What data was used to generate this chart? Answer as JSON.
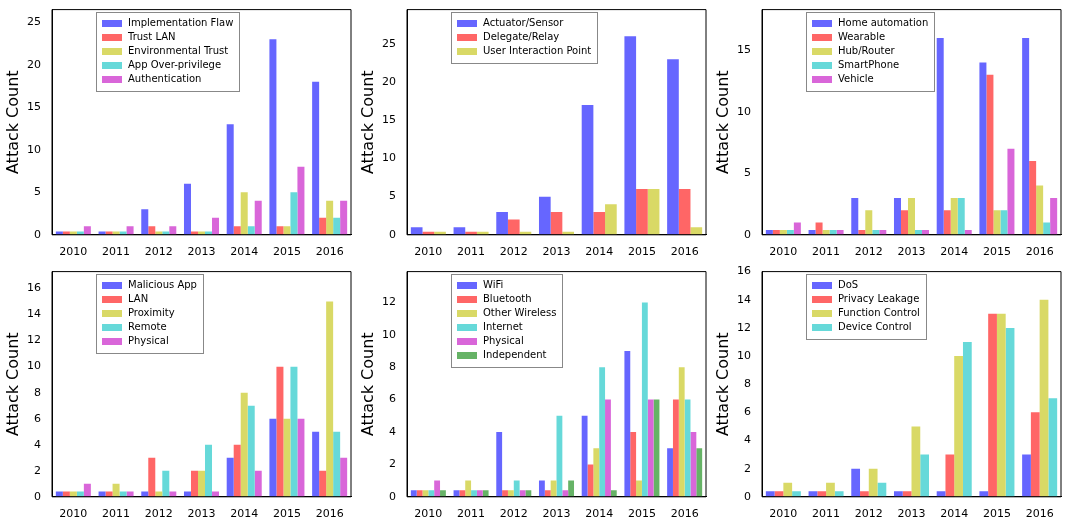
{
  "chart_data": [
    {
      "type": "bar",
      "ylabel": "Attack Count",
      "categories": [
        "2010",
        "2011",
        "2012",
        "2013",
        "2014",
        "2015",
        "2016"
      ],
      "ylim": [
        0,
        26.5
      ],
      "yticks": [
        0,
        5,
        10,
        15,
        20,
        25
      ],
      "grid": false,
      "legend": "top left",
      "series": [
        {
          "name": "Implementation Flaw",
          "color": "#6666ff",
          "values": [
            0.4,
            0.4,
            3,
            6,
            13,
            23,
            18
          ]
        },
        {
          "name": "Trust LAN",
          "color": "#ff6666",
          "values": [
            0.4,
            0.4,
            1,
            0.4,
            1,
            1,
            2
          ]
        },
        {
          "name": "Environmental Trust",
          "color": "#d9d966",
          "values": [
            0.4,
            0.4,
            0.4,
            0.4,
            5,
            1,
            4
          ]
        },
        {
          "name": "App Over-privilege",
          "color": "#66d9d9",
          "values": [
            0.4,
            0.4,
            0.4,
            0.4,
            1,
            5,
            2
          ]
        },
        {
          "name": "Authentication",
          "color": "#d966d9",
          "values": [
            1,
            1,
            1,
            2,
            4,
            8,
            4
          ]
        }
      ]
    },
    {
      "type": "bar",
      "ylabel": "Attack Count",
      "categories": [
        "2010",
        "2011",
        "2012",
        "2013",
        "2014",
        "2015",
        "2016"
      ],
      "ylim": [
        0,
        29.5
      ],
      "yticks": [
        0,
        5,
        10,
        15,
        20,
        25
      ],
      "grid": false,
      "legend": "top left",
      "series": [
        {
          "name": "Actuator/Sensor",
          "color": "#6666ff",
          "values": [
            1,
            1,
            3,
            5,
            17,
            26,
            23
          ]
        },
        {
          "name": "Delegate/Relay",
          "color": "#ff6666",
          "values": [
            0.4,
            0.4,
            2,
            3,
            3,
            6,
            6
          ]
        },
        {
          "name": "User Interaction Point",
          "color": "#d9d966",
          "values": [
            0.4,
            0.4,
            0.4,
            0.4,
            4,
            6,
            1
          ]
        }
      ]
    },
    {
      "type": "bar",
      "ylabel": "Attack Count",
      "categories": [
        "2010",
        "2011",
        "2012",
        "2013",
        "2014",
        "2015",
        "2016"
      ],
      "ylim": [
        0,
        18.3
      ],
      "yticks": [
        0,
        5,
        10,
        15
      ],
      "grid": false,
      "legend": "top left",
      "series": [
        {
          "name": "Home automation",
          "color": "#6666ff",
          "values": [
            0.4,
            0.4,
            3,
            3,
            16,
            14,
            16
          ]
        },
        {
          "name": "Wearable",
          "color": "#ff6666",
          "values": [
            0.4,
            1,
            0.4,
            2,
            2,
            13,
            6
          ]
        },
        {
          "name": "Hub/Router",
          "color": "#d9d966",
          "values": [
            0.4,
            0.4,
            2,
            3,
            3,
            2,
            4
          ]
        },
        {
          "name": "SmartPhone",
          "color": "#66d9d9",
          "values": [
            0.4,
            0.4,
            0.4,
            0.4,
            3,
            2,
            1
          ]
        },
        {
          "name": "Vehicle",
          "color": "#d966d9",
          "values": [
            1,
            0.4,
            0.4,
            0.4,
            0.4,
            7,
            3
          ]
        }
      ]
    },
    {
      "type": "bar",
      "ylabel": "Attack Count",
      "categories": [
        "2010",
        "2011",
        "2012",
        "2013",
        "2014",
        "2015",
        "2016"
      ],
      "ylim": [
        0,
        17.3
      ],
      "yticks": [
        0,
        2,
        4,
        6,
        8,
        10,
        12,
        14,
        16
      ],
      "grid": false,
      "legend": "top left",
      "series": [
        {
          "name": "Malicious App",
          "color": "#6666ff",
          "values": [
            0.4,
            0.4,
            0.4,
            0.4,
            3,
            6,
            5
          ]
        },
        {
          "name": "LAN",
          "color": "#ff6666",
          "values": [
            0.4,
            0.4,
            3,
            2,
            4,
            10,
            2
          ]
        },
        {
          "name": "Proximity",
          "color": "#d9d966",
          "values": [
            0.4,
            1,
            0.4,
            2,
            8,
            6,
            15
          ]
        },
        {
          "name": "Remote",
          "color": "#66d9d9",
          "values": [
            0.4,
            0.4,
            2,
            4,
            7,
            10,
            5
          ]
        },
        {
          "name": "Physical",
          "color": "#d966d9",
          "values": [
            1,
            0.4,
            0.4,
            0.4,
            2,
            6,
            3
          ]
        }
      ]
    },
    {
      "type": "bar",
      "ylabel": "Attack Count",
      "categories": [
        "2010",
        "2011",
        "2012",
        "2013",
        "2014",
        "2015",
        "2016"
      ],
      "ylim": [
        0,
        13.9
      ],
      "yticks": [
        0,
        2,
        4,
        6,
        8,
        10,
        12
      ],
      "grid": false,
      "legend": "top left",
      "series": [
        {
          "name": "WiFi",
          "color": "#6666ff",
          "values": [
            0.4,
            0.4,
            4,
            1,
            5,
            9,
            3
          ]
        },
        {
          "name": "Bluetooth",
          "color": "#ff6666",
          "values": [
            0.4,
            0.4,
            0.4,
            0.4,
            2,
            4,
            6
          ]
        },
        {
          "name": "Other Wireless",
          "color": "#d9d966",
          "values": [
            0.4,
            1,
            0.4,
            1,
            3,
            1,
            8
          ]
        },
        {
          "name": "Internet",
          "color": "#66d9d9",
          "values": [
            0.4,
            0.4,
            1,
            5,
            8,
            12,
            6
          ]
        },
        {
          "name": "Physical",
          "color": "#d966d9",
          "values": [
            1,
            0.4,
            0.4,
            0.4,
            6,
            6,
            4
          ]
        },
        {
          "name": "Independent",
          "color": "#66b366",
          "values": [
            0.4,
            0.4,
            0.4,
            1,
            0.4,
            6,
            3
          ]
        }
      ]
    },
    {
      "type": "bar",
      "ylabel": "Attack Count",
      "categories": [
        "2010",
        "2011",
        "2012",
        "2013",
        "2014",
        "2015",
        "2016"
      ],
      "ylim": [
        0,
        16
      ],
      "yticks": [
        0,
        2,
        4,
        6,
        8,
        10,
        12,
        14,
        16
      ],
      "grid": false,
      "legend": "top left",
      "series": [
        {
          "name": "DoS",
          "color": "#6666ff",
          "values": [
            0.4,
            0.4,
            2,
            0.4,
            0.4,
            0.4,
            3
          ]
        },
        {
          "name": "Privacy Leakage",
          "color": "#ff6666",
          "values": [
            0.4,
            0.4,
            0.4,
            0.4,
            3,
            13,
            6
          ]
        },
        {
          "name": "Function Control",
          "color": "#d9d966",
          "values": [
            1,
            1,
            2,
            5,
            10,
            13,
            14
          ]
        },
        {
          "name": "Device Control",
          "color": "#66d9d9",
          "values": [
            0.4,
            0.4,
            1,
            3,
            11,
            12,
            7
          ]
        }
      ]
    }
  ]
}
